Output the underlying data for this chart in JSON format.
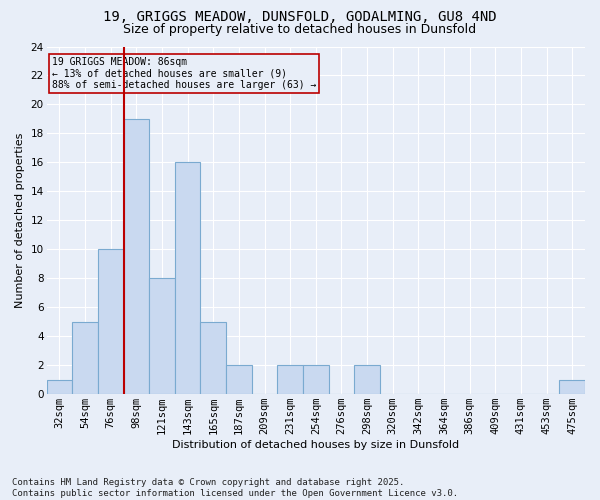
{
  "title1": "19, GRIGGS MEADOW, DUNSFOLD, GODALMING, GU8 4ND",
  "title2": "Size of property relative to detached houses in Dunsfold",
  "xlabel": "Distribution of detached houses by size in Dunsfold",
  "ylabel": "Number of detached properties",
  "footer1": "Contains HM Land Registry data © Crown copyright and database right 2025.",
  "footer2": "Contains public sector information licensed under the Open Government Licence v3.0.",
  "annotation_line1": "19 GRIGGS MEADOW: 86sqm",
  "annotation_line2": "← 13% of detached houses are smaller (9)",
  "annotation_line3": "88% of semi-detached houses are larger (63) →",
  "bar_color": "#c9d9f0",
  "bar_edge_color": "#7aaad0",
  "background_color": "#e8eef8",
  "grid_color": "#ffffff",
  "red_line_color": "#bb0000",
  "annotation_box_color": "#bb0000",
  "categories": [
    "32sqm",
    "54sqm",
    "76sqm",
    "98sqm",
    "121sqm",
    "143sqm",
    "165sqm",
    "187sqm",
    "209sqm",
    "231sqm",
    "254sqm",
    "276sqm",
    "298sqm",
    "320sqm",
    "342sqm",
    "364sqm",
    "386sqm",
    "409sqm",
    "431sqm",
    "453sqm",
    "475sqm"
  ],
  "values": [
    1,
    5,
    10,
    19,
    8,
    16,
    5,
    2,
    0,
    2,
    2,
    0,
    2,
    0,
    0,
    0,
    0,
    0,
    0,
    0,
    1
  ],
  "ylim": [
    0,
    24
  ],
  "yticks": [
    0,
    2,
    4,
    6,
    8,
    10,
    12,
    14,
    16,
    18,
    20,
    22,
    24
  ],
  "red_line_x": 2.5,
  "title1_fontsize": 10,
  "title2_fontsize": 9,
  "axis_label_fontsize": 8,
  "tick_fontsize": 7.5,
  "footer_fontsize": 6.5,
  "annotation_fontsize": 7
}
